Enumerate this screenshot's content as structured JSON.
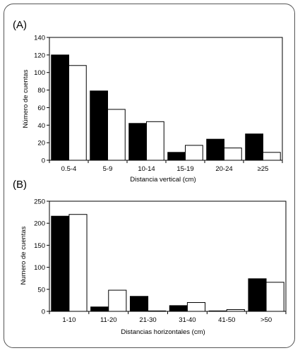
{
  "chart_data": [
    {
      "type": "bar",
      "panel_label": "(A)",
      "title": "",
      "xlabel": "Distancia vertical (cm)",
      "ylabel": "Número de cuentas",
      "categories": [
        "0.5-4",
        "5-9",
        "10-14",
        "15-19",
        "20-24",
        "≥25"
      ],
      "series": [
        {
          "color": "#000000",
          "values": [
            120,
            79,
            42,
            9,
            24,
            30
          ]
        },
        {
          "color": "#ffffff",
          "values": [
            108,
            58,
            44,
            17,
            14,
            9
          ]
        }
      ],
      "ylim": [
        0,
        140
      ],
      "yticks": [
        0,
        20,
        40,
        60,
        80,
        100,
        120,
        140
      ],
      "grid": false
    },
    {
      "type": "bar",
      "panel_label": "(B)",
      "title": "",
      "xlabel": "Distancias horizontales (cm)",
      "ylabel": "Numero de cuentas",
      "categories": [
        "1-10",
        "11-20",
        "21-30",
        "31-40",
        "41-50",
        ">50"
      ],
      "series": [
        {
          "color": "#000000",
          "values": [
            216,
            10,
            34,
            13,
            1,
            74
          ]
        },
        {
          "color": "#ffffff",
          "values": [
            220,
            48,
            1,
            20,
            4,
            66
          ]
        }
      ],
      "ylim": [
        0,
        250
      ],
      "yticks": [
        0,
        50,
        100,
        150,
        200,
        250
      ],
      "grid": false
    }
  ]
}
